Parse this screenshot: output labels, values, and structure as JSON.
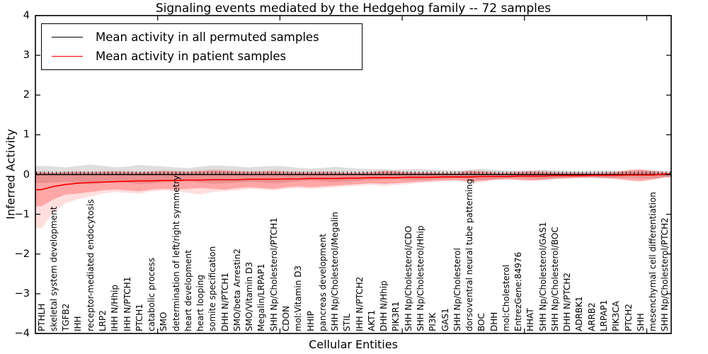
{
  "chart_data": {
    "type": "line",
    "title": "Signaling events mediated by the Hedgehog family -- 72 samples",
    "xlabel": "Cellular Entities",
    "ylabel": "Inferred Activity",
    "ylim": [
      -4,
      4
    ],
    "xtick_rotation": 90,
    "grid": false,
    "legend_position": "upper left",
    "categories": [
      "PTHLH",
      "skeletal system development",
      "TGFB2",
      "IHH",
      "receptor-mediated endocytosis",
      "LRP2",
      "IHH N/Hhip",
      "IHH N/PTCH1",
      "PTCH1",
      "catabolic process",
      "SMO",
      "determination of left/right symmetry",
      "heart development",
      "heart looping",
      "somite specification",
      "DHH N/PTCH1",
      "SMO/beta Arrestin2",
      "SMO/Vitamin D3",
      "Megalin/LRPAP1",
      "SHH Np/Cholesterol/PTCH1",
      "CDON",
      "mol:Vitamin D3",
      "HHIP",
      "pancreas development",
      "SHH Np/Cholesterol/Megalin",
      "STIL",
      "IHH N/PTCH2",
      "AKT1",
      "DHH N/Hhip",
      "PIK3R1",
      "SHH Np/Cholesterol/CDO",
      "SHH Np/Cholesterol/Hhip",
      "PI3K",
      "GAS1",
      "SHH Np/Cholesterol",
      "dorsoventral neural tube patterning",
      "BOC",
      "DHH",
      "mol:Cholesterol",
      "EntrezGene:84976",
      "HHAT",
      "SHH Np/Cholesterol/GAS1",
      "SHH Np/Cholesterol/BOC",
      "DHH N/PTCH2",
      "ADRBK1",
      "ARRB2",
      "LRPAP1",
      "PIK3CA",
      "PTCH2",
      "SHH",
      "mesenchymal cell differentiation",
      "SHH Np/Cholesterol/PTCH2"
    ],
    "xticks": [
      10,
      20,
      30,
      40,
      50
    ],
    "yticks": [
      4,
      3,
      2,
      1,
      0,
      -1,
      -2,
      -3,
      -4
    ],
    "ytick_labels": [
      "4",
      "3",
      "2",
      "1",
      "0",
      "−1",
      "−2",
      "−3",
      "−4"
    ],
    "series": [
      {
        "name": "Mean activity in all permuted samples",
        "color": "#000000",
        "values": [
          0,
          0,
          0,
          0,
          0,
          0,
          0,
          0,
          0,
          0,
          0,
          0,
          0,
          0,
          0,
          0,
          0,
          0,
          0,
          0,
          0,
          0,
          0,
          0,
          0,
          0,
          0,
          0,
          0,
          0,
          0,
          0,
          0,
          0,
          0,
          0,
          0,
          0,
          0,
          0,
          0,
          0,
          0,
          0,
          0,
          0,
          0,
          0,
          0,
          0,
          0,
          0
        ]
      },
      {
        "name": "Mean activity in patient samples",
        "color": "#ff0000",
        "values": [
          -0.38,
          -0.3,
          -0.25,
          -0.22,
          -0.2,
          -0.19,
          -0.18,
          -0.17,
          -0.16,
          -0.16,
          -0.15,
          -0.15,
          -0.14,
          -0.14,
          -0.13,
          -0.13,
          -0.13,
          -0.12,
          -0.12,
          -0.12,
          -0.11,
          -0.11,
          -0.1,
          -0.1,
          -0.1,
          -0.09,
          -0.09,
          -0.08,
          -0.08,
          -0.08,
          -0.07,
          -0.07,
          -0.07,
          -0.06,
          -0.06,
          -0.06,
          -0.05,
          -0.05,
          -0.05,
          -0.04,
          -0.04,
          -0.04,
          -0.03,
          -0.03,
          -0.03,
          -0.02,
          -0.02,
          -0.02,
          -0.01,
          -0.01,
          -0.01,
          0.01
        ]
      }
    ],
    "bands": [
      {
        "name": "permuted-samples-range",
        "color": "rgba(0,0,0,0.13)",
        "upper": [
          0.22,
          0.2,
          0.18,
          0.22,
          0.25,
          0.22,
          0.18,
          0.2,
          0.24,
          0.22,
          0.2,
          0.18,
          0.16,
          0.2,
          0.23,
          0.22,
          0.2,
          0.18,
          0.2,
          0.22,
          0.2,
          0.17,
          0.15,
          0.17,
          0.19,
          0.17,
          0.15,
          0.14,
          0.13,
          0.12,
          0.13,
          0.14,
          0.12,
          0.11,
          0.1,
          0.12,
          0.14,
          0.12,
          0.1,
          0.09,
          0.1,
          0.12,
          0.1,
          0.09,
          0.08,
          0.09,
          0.1,
          0.09,
          0.08,
          0.09,
          0.1,
          0.08
        ],
        "lower": [
          -0.22,
          -0.2,
          -0.18,
          -0.22,
          -0.25,
          -0.22,
          -0.18,
          -0.2,
          -0.24,
          -0.22,
          -0.2,
          -0.18,
          -0.16,
          -0.2,
          -0.23,
          -0.22,
          -0.2,
          -0.18,
          -0.2,
          -0.22,
          -0.2,
          -0.17,
          -0.15,
          -0.17,
          -0.19,
          -0.17,
          -0.15,
          -0.14,
          -0.13,
          -0.12,
          -0.13,
          -0.14,
          -0.12,
          -0.11,
          -0.1,
          -0.12,
          -0.14,
          -0.12,
          -0.1,
          -0.09,
          -0.1,
          -0.12,
          -0.1,
          -0.09,
          -0.08,
          -0.09,
          -0.1,
          -0.09,
          -0.08,
          -0.09,
          -0.1,
          -0.08
        ]
      },
      {
        "name": "patient-samples-range-outer",
        "color": "rgba(255,0,0,0.13)",
        "upper": [
          0.08,
          0.07,
          0.08,
          0.09,
          0.08,
          0.09,
          0.1,
          0.09,
          0.08,
          0.09,
          0.11,
          0.1,
          0.09,
          0.11,
          0.13,
          0.12,
          0.1,
          0.09,
          0.1,
          0.11,
          0.09,
          0.08,
          0.08,
          0.09,
          0.08,
          0.07,
          0.07,
          0.08,
          0.11,
          0.1,
          0.08,
          0.07,
          0.07,
          0.06,
          0.06,
          0.11,
          0.1,
          0.07,
          0.06,
          0.08,
          0.1,
          0.09,
          0.07,
          0.06,
          0.06,
          0.05,
          0.06,
          0.08,
          0.13,
          0.15,
          0.11,
          0.07
        ],
        "lower": [
          -1.35,
          -0.95,
          -0.72,
          -0.62,
          -0.55,
          -0.48,
          -0.44,
          -0.46,
          -0.48,
          -0.42,
          -0.4,
          -0.42,
          -0.46,
          -0.5,
          -0.44,
          -0.42,
          -0.4,
          -0.36,
          -0.38,
          -0.4,
          -0.36,
          -0.34,
          -0.36,
          -0.34,
          -0.32,
          -0.3,
          -0.28,
          -0.26,
          -0.28,
          -0.26,
          -0.24,
          -0.21,
          -0.19,
          -0.17,
          -0.16,
          -0.21,
          -0.19,
          -0.15,
          -0.13,
          -0.15,
          -0.17,
          -0.15,
          -0.12,
          -0.1,
          -0.09,
          -0.08,
          -0.09,
          -0.12,
          -0.16,
          -0.18,
          -0.14,
          -0.07
        ]
      },
      {
        "name": "patient-samples-range",
        "color": "rgba(255,0,0,0.25)",
        "upper": [
          0.05,
          0.04,
          0.05,
          0.06,
          0.05,
          0.06,
          0.07,
          0.06,
          0.05,
          0.06,
          0.08,
          0.07,
          0.06,
          0.08,
          0.1,
          0.09,
          0.07,
          0.06,
          0.07,
          0.08,
          0.06,
          0.05,
          0.05,
          0.06,
          0.05,
          0.04,
          0.04,
          0.05,
          0.08,
          0.07,
          0.05,
          0.04,
          0.04,
          0.03,
          0.03,
          0.08,
          0.07,
          0.04,
          0.03,
          0.05,
          0.07,
          0.06,
          0.04,
          0.03,
          0.03,
          0.02,
          0.03,
          0.05,
          0.1,
          0.12,
          0.08,
          0.04
        ],
        "lower": [
          -0.8,
          -0.62,
          -0.5,
          -0.48,
          -0.44,
          -0.4,
          -0.38,
          -0.4,
          -0.42,
          -0.38,
          -0.36,
          -0.38,
          -0.36,
          -0.34,
          -0.36,
          -0.38,
          -0.34,
          -0.32,
          -0.34,
          -0.36,
          -0.32,
          -0.3,
          -0.32,
          -0.3,
          -0.28,
          -0.26,
          -0.24,
          -0.22,
          -0.24,
          -0.22,
          -0.2,
          -0.18,
          -0.16,
          -0.15,
          -0.14,
          -0.18,
          -0.16,
          -0.13,
          -0.11,
          -0.13,
          -0.15,
          -0.13,
          -0.1,
          -0.09,
          -0.08,
          -0.07,
          -0.08,
          -0.1,
          -0.14,
          -0.16,
          -0.12,
          -0.06
        ]
      }
    ]
  }
}
